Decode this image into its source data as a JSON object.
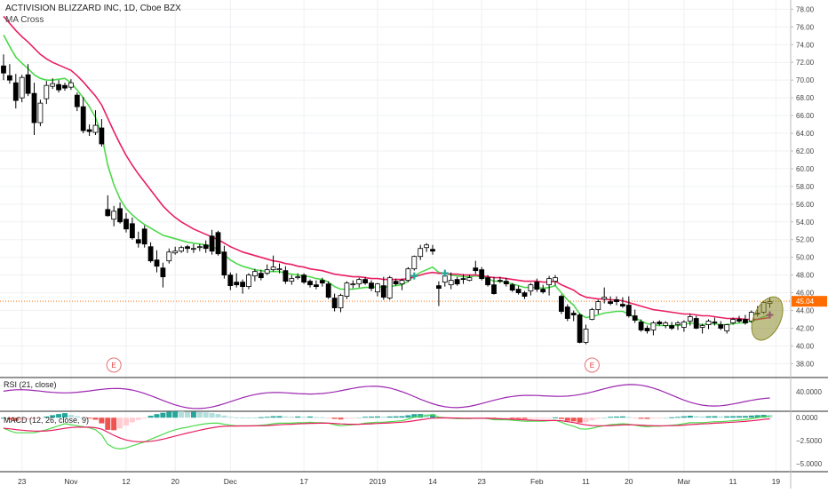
{
  "header": {
    "title": "ACTIVISION BLIZZARD INC, 1D, Cboe BZX",
    "indicator": "MA Cross"
  },
  "chart_data": {
    "type": "candlestick",
    "symbol": "ACTIVISION BLIZZARD INC",
    "interval": "1D",
    "exchange": "Cboe BZX",
    "price_axis": {
      "range": [
        37.8,
        79.2
      ],
      "ticks": [
        "78.00",
        "76.00",
        "74.00",
        "72.00",
        "70.00",
        "68.00",
        "66.00",
        "64.00",
        "62.00",
        "60.00",
        "58.00",
        "56.00",
        "54.00",
        "52.00",
        "50.00",
        "48.00",
        "46.00",
        "44.00",
        "42.00",
        "40.00",
        "38.00"
      ]
    },
    "time_axis": {
      "labels": [
        "23",
        "Nov",
        "12",
        "20",
        "Dec",
        "17",
        "2019",
        "14",
        "23",
        "Feb",
        "11",
        "20",
        "Mar",
        "11",
        "19"
      ],
      "label_bars": [
        3,
        11,
        20,
        28,
        37,
        49,
        61,
        70,
        78,
        87,
        95,
        102,
        111,
        119,
        126
      ]
    },
    "last_price": {
      "value": 45.04,
      "label": "45.04",
      "color": "#ff6d00"
    },
    "earnings_markers": [
      {
        "bar": 18,
        "label": "E"
      },
      {
        "bar": 96,
        "label": "E"
      }
    ],
    "candles": [
      [
        71.6,
        72.9,
        70.0,
        70.8
      ],
      [
        70.5,
        71.8,
        69.6,
        70.0
      ],
      [
        69.7,
        70.7,
        66.8,
        67.7
      ],
      [
        68.0,
        70.6,
        67.5,
        70.3
      ],
      [
        70.6,
        71.8,
        68.2,
        68.5
      ],
      [
        68.5,
        69.7,
        63.8,
        65.2
      ],
      [
        65.2,
        67.8,
        64.8,
        67.4
      ],
      [
        67.9,
        69.9,
        67.3,
        69.4
      ],
      [
        69.3,
        70.2,
        69.0,
        69.6
      ],
      [
        69.5,
        70.0,
        68.6,
        68.9
      ],
      [
        69.4,
        69.7,
        68.8,
        69.1
      ],
      [
        69.2,
        70.1,
        68.9,
        69.7
      ],
      [
        68.3,
        68.6,
        66.5,
        67.0
      ],
      [
        67.0,
        68.1,
        64.0,
        64.3
      ],
      [
        64.4,
        65.0,
        63.7,
        64.2
      ],
      [
        64.1,
        66.6,
        63.8,
        64.9
      ],
      [
        64.6,
        65.6,
        62.5,
        62.8
      ],
      [
        55.4,
        57.0,
        54.6,
        54.7
      ],
      [
        54.3,
        55.8,
        53.5,
        55.2
      ],
      [
        55.5,
        56.2,
        53.8,
        54.0
      ],
      [
        54.3,
        55.0,
        52.8,
        53.2
      ],
      [
        53.8,
        54.5,
        52.0,
        52.2
      ],
      [
        52.0,
        52.9,
        51.1,
        51.6
      ],
      [
        53.2,
        53.6,
        51.1,
        51.5
      ],
      [
        51.2,
        51.7,
        49.4,
        49.6
      ],
      [
        49.7,
        50.8,
        48.3,
        49.0
      ],
      [
        48.8,
        49.4,
        46.6,
        47.8
      ],
      [
        49.6,
        51.0,
        49.3,
        50.6
      ],
      [
        50.5,
        51.2,
        50.3,
        50.7
      ],
      [
        50.7,
        51.3,
        50.5,
        51.1
      ],
      [
        51.2,
        51.4,
        50.5,
        51.0
      ],
      [
        51.0,
        51.5,
        50.5,
        51.0
      ],
      [
        51.1,
        51.5,
        50.7,
        51.2
      ],
      [
        51.4,
        51.9,
        50.5,
        51.0
      ],
      [
        52.4,
        53.1,
        50.3,
        50.7
      ],
      [
        52.8,
        53.0,
        50.2,
        50.4
      ],
      [
        50.6,
        51.3,
        47.6,
        48.0
      ],
      [
        48.0,
        48.3,
        46.3,
        46.8
      ],
      [
        47.2,
        48.2,
        46.6,
        46.9
      ],
      [
        47.2,
        47.5,
        45.9,
        46.7
      ],
      [
        46.7,
        48.2,
        46.4,
        48.0
      ],
      [
        47.9,
        48.7,
        47.3,
        48.4
      ],
      [
        48.2,
        48.6,
        47.4,
        47.7
      ],
      [
        48.2,
        49.2,
        48.0,
        48.6
      ],
      [
        48.6,
        50.2,
        48.4,
        48.9
      ],
      [
        48.6,
        49.3,
        48.2,
        48.7
      ],
      [
        48.5,
        49.0,
        47.0,
        47.3
      ],
      [
        47.3,
        48.0,
        46.9,
        47.6
      ],
      [
        47.7,
        48.2,
        47.5,
        47.8
      ],
      [
        48.0,
        48.2,
        47.0,
        47.2
      ],
      [
        47.3,
        47.5,
        46.6,
        46.9
      ],
      [
        46.9,
        47.4,
        46.4,
        46.7
      ],
      [
        47.4,
        47.7,
        46.7,
        47.1
      ],
      [
        47.0,
        47.3,
        45.3,
        45.5
      ],
      [
        45.4,
        45.9,
        43.9,
        44.3
      ],
      [
        44.3,
        45.9,
        43.8,
        45.7
      ],
      [
        45.6,
        47.3,
        45.3,
        47.1
      ],
      [
        46.9,
        47.4,
        46.5,
        47.0
      ],
      [
        47.0,
        47.7,
        46.6,
        47.5
      ],
      [
        47.5,
        47.8,
        46.9,
        47.1
      ],
      [
        47.1,
        47.4,
        46.2,
        46.5
      ],
      [
        46.1,
        47.1,
        45.6,
        47.0
      ],
      [
        46.8,
        47.8,
        45.2,
        45.5
      ],
      [
        45.4,
        47.9,
        45.2,
        47.7
      ],
      [
        47.3,
        47.6,
        46.8,
        47.0
      ],
      [
        47.0,
        47.6,
        46.3,
        47.4
      ],
      [
        47.4,
        48.9,
        47.2,
        48.7
      ],
      [
        48.7,
        50.2,
        48.5,
        50.1
      ],
      [
        50.1,
        51.4,
        49.7,
        51.0
      ],
      [
        51.1,
        51.6,
        50.6,
        51.4
      ],
      [
        50.9,
        51.4,
        50.3,
        50.7
      ],
      [
        46.8,
        47.3,
        44.5,
        46.5
      ],
      [
        47.2,
        48.0,
        46.7,
        47.9
      ],
      [
        46.9,
        48.3,
        46.4,
        47.4
      ],
      [
        47.5,
        47.8,
        46.8,
        47.0
      ],
      [
        47.6,
        48.1,
        47.0,
        47.5
      ],
      [
        47.4,
        48.0,
        47.3,
        47.7
      ],
      [
        48.8,
        49.6,
        48.1,
        48.5
      ],
      [
        48.6,
        48.9,
        47.4,
        47.6
      ],
      [
        47.7,
        48.0,
        46.7,
        46.9
      ],
      [
        46.9,
        47.8,
        45.8,
        45.9
      ],
      [
        47.4,
        47.8,
        47.1,
        47.3
      ],
      [
        47.3,
        47.7,
        46.7,
        47.0
      ],
      [
        46.9,
        47.1,
        46.1,
        46.3
      ],
      [
        46.4,
        46.8,
        45.8,
        46.0
      ],
      [
        46.0,
        46.2,
        45.3,
        45.6
      ],
      [
        46.2,
        47.1,
        45.7,
        46.9
      ],
      [
        47.2,
        47.6,
        46.1,
        46.4
      ],
      [
        46.4,
        46.9,
        45.9,
        46.1
      ],
      [
        46.9,
        47.9,
        45.7,
        47.6
      ],
      [
        47.3,
        48.0,
        46.8,
        47.7
      ],
      [
        45.6,
        45.8,
        43.6,
        43.9
      ],
      [
        44.4,
        44.7,
        42.8,
        43.1
      ],
      [
        43.7,
        44.0,
        42.8,
        43.5
      ],
      [
        43.5,
        43.7,
        40.3,
        40.4
      ],
      [
        40.4,
        42.4,
        40.2,
        41.9
      ],
      [
        43.0,
        44.3,
        42.9,
        44.1
      ],
      [
        44.1,
        45.2,
        43.6,
        45.0
      ],
      [
        45.3,
        46.6,
        44.8,
        45.5
      ],
      [
        45.0,
        45.6,
        44.6,
        44.8
      ],
      [
        45.2,
        45.6,
        44.6,
        45.0
      ],
      [
        44.7,
        45.5,
        44.3,
        44.5
      ],
      [
        44.6,
        45.6,
        43.2,
        43.4
      ],
      [
        43.4,
        44.1,
        42.6,
        42.9
      ],
      [
        42.7,
        43.0,
        41.6,
        41.8
      ],
      [
        42.0,
        42.3,
        41.4,
        41.7
      ],
      [
        41.8,
        42.8,
        41.2,
        42.6
      ],
      [
        42.7,
        42.9,
        42.3,
        42.5
      ],
      [
        42.3,
        42.8,
        42.0,
        42.6
      ],
      [
        42.3,
        42.7,
        41.8,
        42.0
      ],
      [
        42.4,
        42.8,
        41.8,
        42.6
      ],
      [
        42.1,
        42.9,
        41.6,
        42.7
      ],
      [
        42.8,
        43.6,
        42.3,
        43.3
      ],
      [
        43.1,
        43.4,
        41.9,
        42.0
      ],
      [
        42.1,
        42.5,
        41.4,
        42.3
      ],
      [
        42.4,
        43.0,
        41.9,
        42.8
      ],
      [
        42.7,
        43.2,
        42.3,
        42.6
      ],
      [
        42.4,
        42.8,
        41.8,
        42.0
      ],
      [
        41.7,
        42.5,
        41.4,
        42.4
      ],
      [
        42.6,
        43.2,
        42.4,
        43.0
      ],
      [
        43.0,
        43.4,
        42.6,
        42.8
      ],
      [
        43.0,
        43.5,
        42.4,
        42.6
      ],
      [
        42.8,
        44.0,
        42.6,
        43.8
      ],
      [
        43.6,
        44.5,
        43.3,
        43.7
      ],
      [
        43.8,
        45.1,
        43.6,
        44.9
      ],
      [
        44.8,
        45.5,
        44.3,
        45.0
      ]
    ],
    "series": [
      {
        "name": "MA fast",
        "color": "#4cd94c",
        "values": [
          75.1,
          73.8,
          72.6,
          71.9,
          71.3,
          70.6,
          70.2,
          70.0,
          70.0,
          70.1,
          70.2,
          69.7,
          68.9,
          68.0,
          67.0,
          65.8,
          63.8,
          60.4,
          58.2,
          56.6,
          55.5,
          54.8,
          54.2,
          53.7,
          53.3,
          52.9,
          52.5,
          52.3,
          52.1,
          51.9,
          51.7,
          51.6,
          51.5,
          51.4,
          51.2,
          50.9,
          50.3,
          49.7,
          49.3,
          49.0,
          48.8,
          48.6,
          48.5,
          48.4,
          48.4,
          48.4,
          48.2,
          48.1,
          48.0,
          47.9,
          47.8,
          47.6,
          47.5,
          47.2,
          46.7,
          46.4,
          46.4,
          46.4,
          46.5,
          46.6,
          46.6,
          46.7,
          46.6,
          46.7,
          46.8,
          46.9,
          47.3,
          47.9,
          48.3,
          48.6,
          48.9,
          48.3,
          48.2,
          48.0,
          47.9,
          47.8,
          47.8,
          47.9,
          47.8,
          47.6,
          47.3,
          47.3,
          47.2,
          47.0,
          46.8,
          46.6,
          46.6,
          46.6,
          46.5,
          46.6,
          46.8,
          46.0,
          45.2,
          44.6,
          43.6,
          43.2,
          43.3,
          43.5,
          43.7,
          43.8,
          43.9,
          43.9,
          43.6,
          43.2,
          42.8,
          42.5,
          42.4,
          42.3,
          42.3,
          42.3,
          42.3,
          42.4,
          42.6,
          42.5,
          42.4,
          42.5,
          42.5,
          42.4,
          42.4,
          42.5,
          42.6,
          42.6,
          42.8,
          43.0,
          43.3,
          43.5
        ]
      },
      {
        "name": "MA slow",
        "color": "#e91e63",
        "values": [
          77.2,
          76.4,
          75.6,
          74.9,
          74.3,
          73.6,
          72.9,
          72.4,
          72.0,
          71.7,
          71.4,
          71.1,
          70.5,
          69.8,
          69.0,
          68.2,
          67.2,
          65.7,
          64.2,
          62.8,
          61.5,
          60.4,
          59.4,
          58.5,
          57.6,
          56.7,
          55.8,
          55.1,
          54.5,
          54.0,
          53.6,
          53.2,
          52.9,
          52.6,
          52.3,
          52.0,
          51.6,
          51.2,
          50.9,
          50.6,
          50.4,
          50.2,
          50.0,
          49.8,
          49.6,
          49.5,
          49.3,
          49.2,
          49.0,
          48.9,
          48.7,
          48.6,
          48.5,
          48.3,
          48.1,
          48.0,
          47.9,
          47.8,
          47.8,
          47.7,
          47.6,
          47.6,
          47.5,
          47.5,
          47.5,
          47.5,
          47.6,
          47.8,
          48.0,
          48.2,
          48.3,
          48.2,
          48.2,
          48.1,
          48.1,
          48.0,
          48.0,
          48.0,
          47.9,
          47.8,
          47.7,
          47.7,
          47.6,
          47.5,
          47.4,
          47.3,
          47.3,
          47.3,
          47.2,
          47.2,
          47.3,
          46.9,
          46.6,
          46.3,
          45.8,
          45.5,
          45.4,
          45.3,
          45.3,
          45.2,
          45.2,
          45.1,
          44.9,
          44.7,
          44.5,
          44.3,
          44.1,
          44.0,
          43.9,
          43.8,
          43.7,
          43.6,
          43.6,
          43.5,
          43.4,
          43.4,
          43.3,
          43.2,
          43.1,
          43.1,
          43.1,
          43.0,
          43.0,
          43.0,
          43.1,
          43.2
        ]
      }
    ],
    "cross_markers": [
      {
        "bar": 67,
        "color": "#26a69a"
      },
      {
        "bar": 72,
        "color": "#26a69a"
      },
      {
        "bar": 125,
        "color": "#9c27b0"
      }
    ],
    "panes": [
      {
        "name": "RSI",
        "label": "RSI (21, close)",
        "value_label": "40.0000",
        "line_color": "#9c27b0"
      },
      {
        "name": "MACD",
        "label": "MACD (12, 26, close, 9)",
        "tick_labels": [
          "0.0000",
          "−2.5000",
          "−5.0000"
        ],
        "range": [
          -5.8,
          0.6
        ],
        "macd_color": "#4cd94c",
        "signal_color": "#e91e63"
      }
    ],
    "highlight": {
      "shape": "ellipse",
      "center_bar": 124,
      "center_price": 43.4,
      "color": "#8b8b2a"
    }
  }
}
